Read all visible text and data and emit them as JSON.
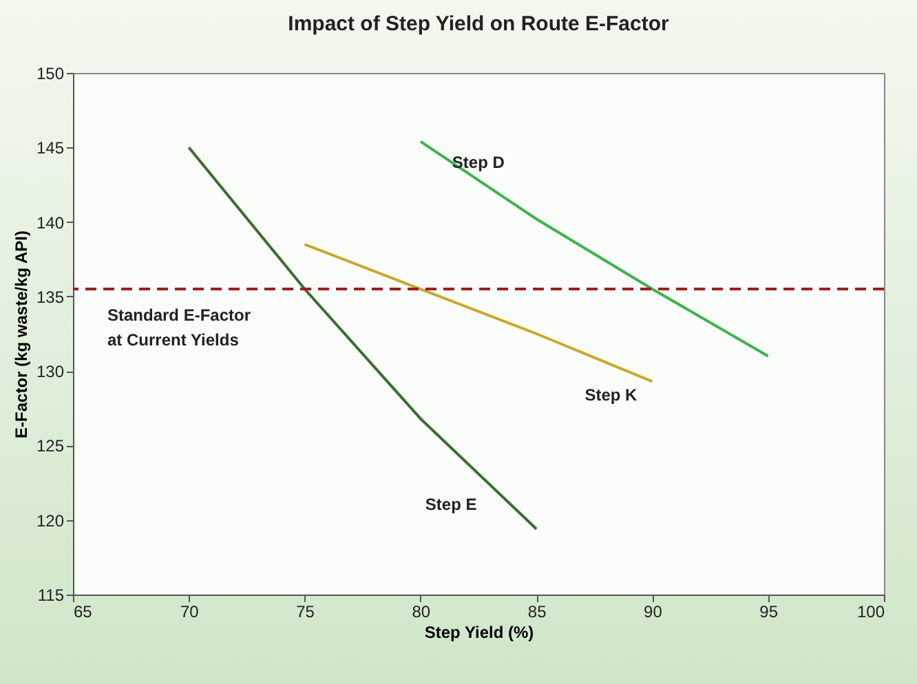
{
  "chart_data": {
    "type": "line",
    "title": "Impact of Step Yield on Route E-Factor",
    "xlabel": "Step Yield (%)",
    "ylabel": "E-Factor (kg waste/kg API)",
    "series": [
      {
        "name": "Step E",
        "color": "#3d6b35",
        "x": [
          70,
          75,
          80,
          85
        ],
        "values": [
          145,
          135.5,
          126.8,
          119.4
        ]
      },
      {
        "name": "Step K",
        "color": "#c8a92a",
        "x": [
          75,
          80,
          85,
          90
        ],
        "values": [
          138.5,
          135.5,
          132.5,
          129.3
        ]
      },
      {
        "name": "Step D",
        "color": "#3cb44a",
        "x": [
          80,
          85,
          90,
          95
        ],
        "values": [
          145.4,
          140.2,
          135.5,
          131
        ]
      }
    ],
    "ref_lines": [
      {
        "axis": "y",
        "value": 135.5,
        "label": "Standard E-Factor\nat Current Yields",
        "color": "#a01c1c",
        "line_style": "dashed"
      }
    ],
    "xlim": [
      65,
      100
    ],
    "xticks": [
      65,
      70,
      75,
      80,
      85,
      90,
      95,
      100
    ],
    "ylim": [
      115,
      150
    ],
    "yticks": [
      115,
      120,
      125,
      130,
      135,
      140,
      145,
      150
    ],
    "grid": false,
    "marker": "none",
    "line_style": "solid"
  }
}
